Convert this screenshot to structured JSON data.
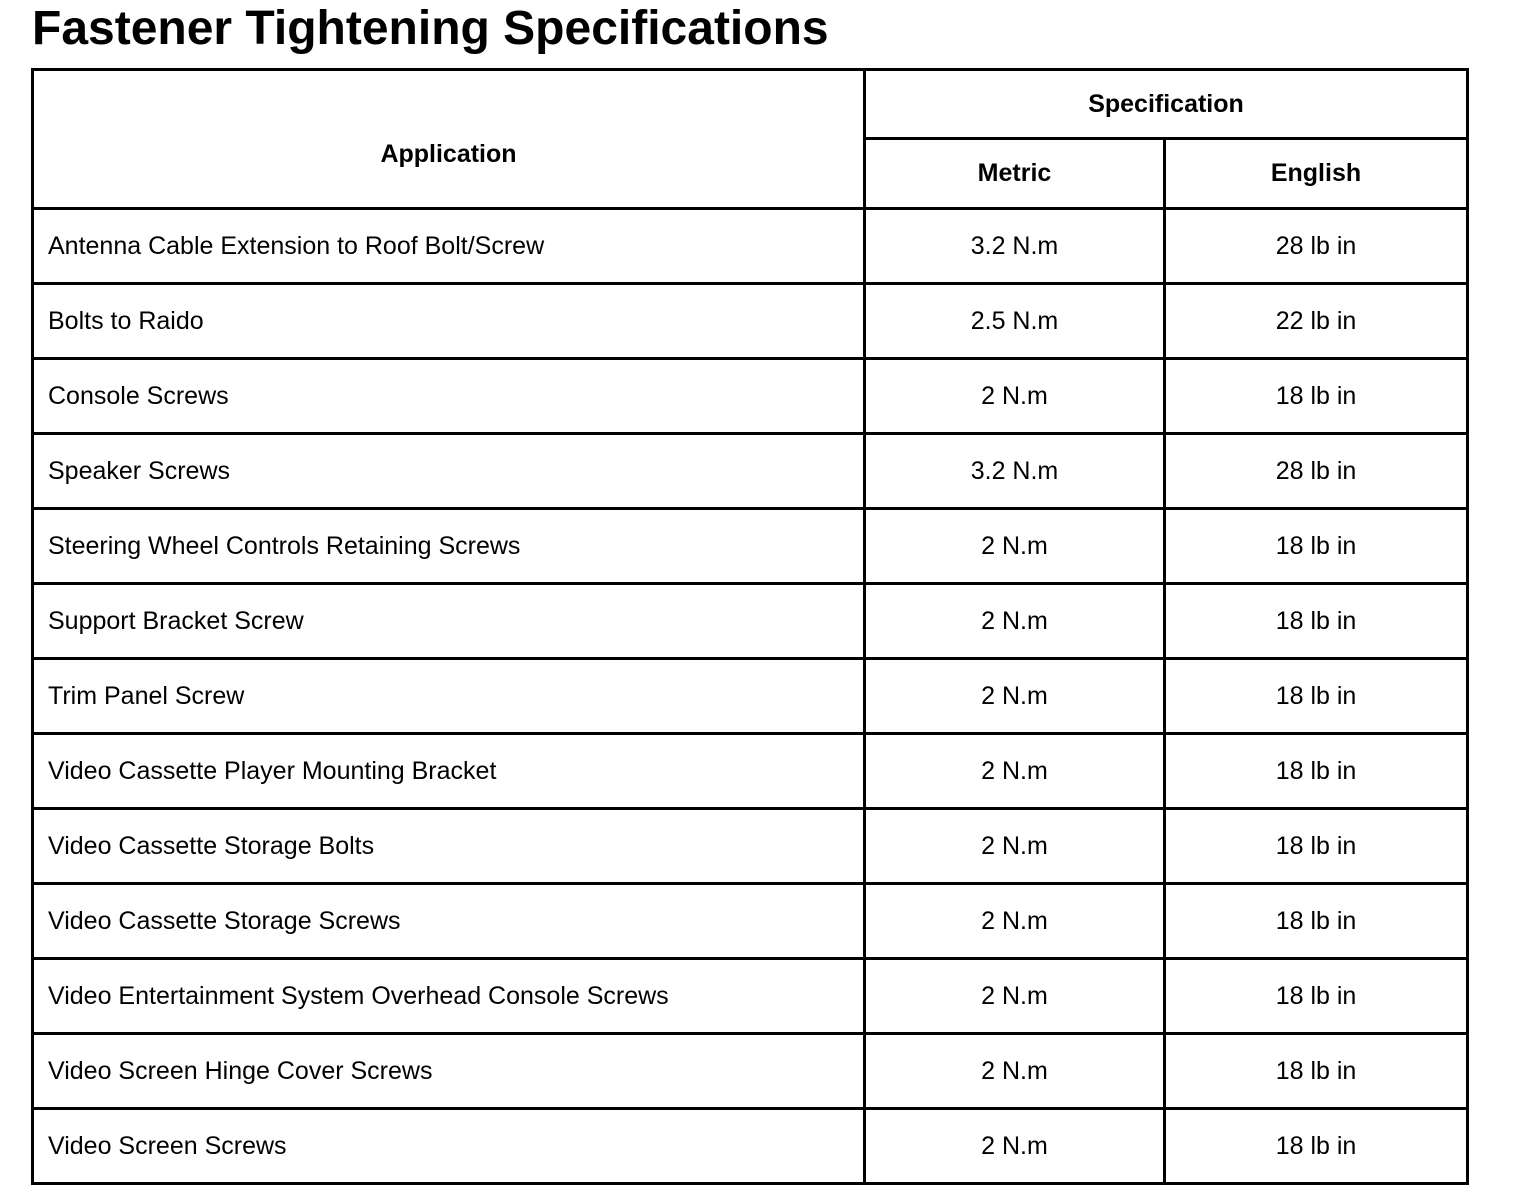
{
  "header": {
    "title": "Fastener Tightening Specifications"
  },
  "table": {
    "columns": {
      "application": "Application",
      "specification": "Specification",
      "metric": "Metric",
      "english": "English"
    },
    "rows": [
      [
        "Antenna Cable Extension to Roof Bolt/Screw",
        "3.2 N.m",
        "28 lb in"
      ],
      [
        "Bolts to Raido",
        "2.5 N.m",
        "22 lb in"
      ],
      [
        "Console Screws",
        "2 N.m",
        "18 lb in"
      ],
      [
        "Speaker Screws",
        "3.2 N.m",
        "28 lb in"
      ],
      [
        "Steering Wheel Controls Retaining Screws",
        "2 N.m",
        "18 lb in"
      ],
      [
        "Support Bracket Screw",
        "2 N.m",
        "18 lb in"
      ],
      [
        "Trim Panel Screw",
        "2 N.m",
        "18 lb in"
      ],
      [
        "Video Cassette Player Mounting Bracket",
        "2 N.m",
        "18 lb in"
      ],
      [
        "Video Cassette Storage Bolts",
        "2 N.m",
        "18 lb in"
      ],
      [
        "Video Cassette Storage Screws",
        "2 N.m",
        "18 lb in"
      ],
      [
        "Video Entertainment System Overhead Console Screws",
        "2 N.m",
        "18 lb in"
      ],
      [
        "Video Screen Hinge Cover Screws",
        "2 N.m",
        "18 lb in"
      ],
      [
        "Video Screen Screws",
        "2 N.m",
        "18 lb in"
      ]
    ]
  }
}
